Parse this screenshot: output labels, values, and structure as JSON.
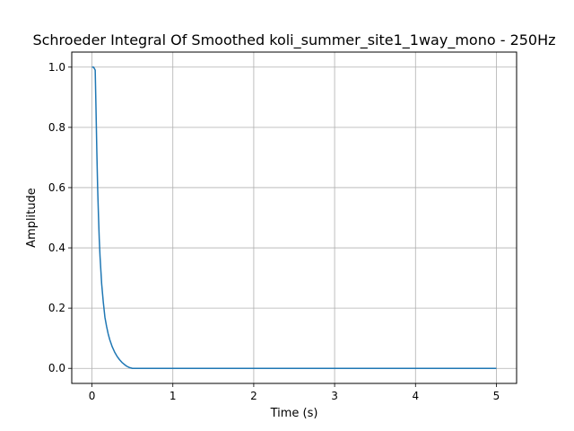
{
  "chart_data": {
    "type": "line",
    "title": "Schroeder Integral Of Smoothed koli_summer_site1_1way_mono - 250Hz",
    "xlabel": "Time (s)",
    "ylabel": "Amplitude",
    "xlim": [
      -0.25,
      5.25
    ],
    "ylim": [
      -0.05,
      1.05
    ],
    "xticks": [
      0,
      1,
      2,
      3,
      4,
      5
    ],
    "xtick_labels": [
      "0",
      "1",
      "2",
      "3",
      "4",
      "5"
    ],
    "yticks": [
      0.0,
      0.2,
      0.4,
      0.6,
      0.8,
      1.0
    ],
    "ytick_labels": [
      "0.0",
      "0.2",
      "0.4",
      "0.6",
      "0.8",
      "1.0"
    ],
    "grid": true,
    "series": [
      {
        "color": "#1f77b4",
        "x": [
          0.0,
          0.02,
          0.04,
          0.05,
          0.06,
          0.07,
          0.08,
          0.09,
          0.1,
          0.12,
          0.14,
          0.16,
          0.18,
          0.2,
          0.22,
          0.25,
          0.28,
          0.31,
          0.34,
          0.37,
          0.4,
          0.43,
          0.46,
          0.5,
          0.6,
          1.0,
          2.0,
          3.0,
          4.0,
          5.0
        ],
        "y": [
          1.0,
          1.0,
          0.99,
          0.86,
          0.72,
          0.6,
          0.51,
          0.43,
          0.37,
          0.28,
          0.22,
          0.17,
          0.14,
          0.115,
          0.095,
          0.072,
          0.054,
          0.04,
          0.029,
          0.02,
          0.013,
          0.007,
          0.003,
          0.0,
          0.0,
          0.0,
          0.0,
          0.0,
          0.0,
          0.0
        ]
      }
    ]
  }
}
